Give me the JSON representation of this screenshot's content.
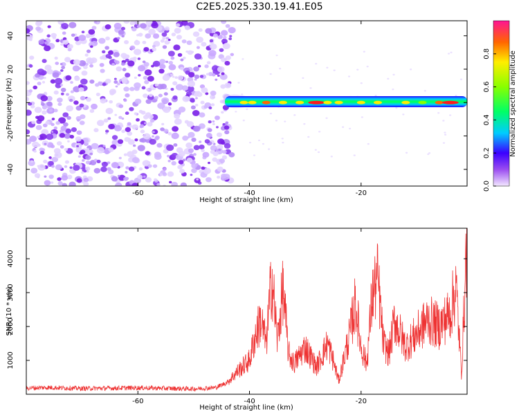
{
  "title": "C2E5.2025.330.19.41.E05",
  "chart_data": [
    {
      "type": "heatmap",
      "name": "spectrogram",
      "xlabel": "Height of straight line (km)",
      "ylabel": "Frequency (Hz)",
      "xlim": [
        -80,
        -1
      ],
      "ylim": [
        -50,
        49
      ],
      "xticks": [
        "-60",
        "-40",
        "-20"
      ],
      "yticks": [
        "40",
        "20",
        "0",
        "-20",
        "-40"
      ],
      "colorbar": {
        "label": "Normalized spectral amplitude",
        "range": [
          0,
          1
        ],
        "ticks": [
          "0.0",
          "0.2",
          "0.4",
          "0.6",
          "0.8"
        ]
      },
      "features": {
        "noise_region_x": [
          -80,
          -43
        ],
        "signal_band_center_freq": 0,
        "signal_band_x": [
          -43,
          -1
        ]
      }
    },
    {
      "type": "line",
      "name": "snr",
      "xlabel": "Height of straight line (km)",
      "ylabel": "SNR (10 * v/v)",
      "xlim": [
        -80,
        -1
      ],
      "ylim": [
        0,
        4900
      ],
      "xticks": [
        "-60",
        "-40",
        "-20"
      ],
      "yticks": [
        "1000",
        "2000",
        "3000",
        "4000"
      ],
      "color": "#ee3333",
      "keypoints": [
        {
          "x": -80,
          "y": 180
        },
        {
          "x": -76,
          "y": 200
        },
        {
          "x": -70,
          "y": 170
        },
        {
          "x": -60,
          "y": 190
        },
        {
          "x": -50,
          "y": 160
        },
        {
          "x": -46,
          "y": 200
        },
        {
          "x": -44,
          "y": 350
        },
        {
          "x": -42,
          "y": 700
        },
        {
          "x": -40,
          "y": 1000
        },
        {
          "x": -39,
          "y": 1700
        },
        {
          "x": -38,
          "y": 2200
        },
        {
          "x": -37,
          "y": 1500
        },
        {
          "x": -36,
          "y": 3500
        },
        {
          "x": -35,
          "y": 1600
        },
        {
          "x": -34,
          "y": 3100
        },
        {
          "x": -33,
          "y": 1200
        },
        {
          "x": -32,
          "y": 900
        },
        {
          "x": -30,
          "y": 1400
        },
        {
          "x": -28,
          "y": 800
        },
        {
          "x": -26,
          "y": 1500
        },
        {
          "x": -25,
          "y": 1000
        },
        {
          "x": -24,
          "y": 400
        },
        {
          "x": -22,
          "y": 1800
        },
        {
          "x": -21,
          "y": 2700
        },
        {
          "x": -20,
          "y": 1400
        },
        {
          "x": -19,
          "y": 900
        },
        {
          "x": -18,
          "y": 2900
        },
        {
          "x": -17,
          "y": 3400
        },
        {
          "x": -16,
          "y": 1500
        },
        {
          "x": -15,
          "y": 1200
        },
        {
          "x": -14,
          "y": 2200
        },
        {
          "x": -12,
          "y": 1400
        },
        {
          "x": -10,
          "y": 1800
        },
        {
          "x": -8,
          "y": 2200
        },
        {
          "x": -6,
          "y": 2000
        },
        {
          "x": -4,
          "y": 2400
        },
        {
          "x": -3,
          "y": 3200
        },
        {
          "x": -2,
          "y": 600
        },
        {
          "x": -1,
          "y": 4800
        }
      ]
    }
  ]
}
